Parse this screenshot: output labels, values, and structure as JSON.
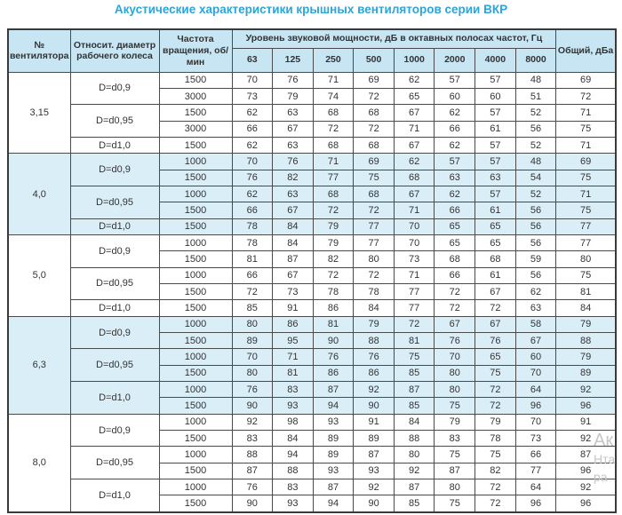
{
  "title": "Акустические характеристики крышных вентиляторов серии ВКР",
  "colors": {
    "title_text": "#29a6da",
    "header_bg": "#c8e5f3",
    "row_alt_bg": "#daeef8",
    "border": "#4a4a4a",
    "outer_border": "#3a3a3a",
    "text": "#333333",
    "watermark": "#c6c6c6"
  },
  "table": {
    "header": {
      "fan_number": "№ вентилятора",
      "diameter": "Относит. диаметр рабочего колеса",
      "speed": "Частота вращения, об/мин",
      "spl_group": "Уровень звуковой мощности, дБ в октавных полосах частот, Гц",
      "frequencies": [
        "63",
        "125",
        "250",
        "500",
        "1000",
        "2000",
        "4000",
        "8000"
      ],
      "total": "Общий, дБа"
    },
    "groups": [
      {
        "fan": "3,15",
        "shaded": false,
        "subgroups": [
          {
            "diameter": "D=d0,9",
            "rows": [
              {
                "speed": "1500",
                "values": [
                  70,
                  76,
                  71,
                  69,
                  62,
                  57,
                  57,
                  48
                ],
                "total": 69
              },
              {
                "speed": "3000",
                "values": [
                  73,
                  79,
                  74,
                  72,
                  65,
                  60,
                  60,
                  51
                ],
                "total": 72
              }
            ]
          },
          {
            "diameter": "D=d0,95",
            "rows": [
              {
                "speed": "1500",
                "values": [
                  62,
                  63,
                  68,
                  68,
                  67,
                  62,
                  57,
                  52
                ],
                "total": 71
              },
              {
                "speed": "3000",
                "values": [
                  66,
                  67,
                  72,
                  72,
                  71,
                  66,
                  61,
                  56
                ],
                "total": 75
              }
            ]
          },
          {
            "diameter": "D=d1,0",
            "rows": [
              {
                "speed": "1500",
                "values": [
                  62,
                  63,
                  68,
                  68,
                  67,
                  62,
                  57,
                  52
                ],
                "total": 71
              }
            ]
          }
        ]
      },
      {
        "fan": "4,0",
        "shaded": true,
        "subgroups": [
          {
            "diameter": "D=d0,9",
            "rows": [
              {
                "speed": "1000",
                "values": [
                  70,
                  76,
                  71,
                  69,
                  62,
                  57,
                  57,
                  48
                ],
                "total": 69
              },
              {
                "speed": "1500",
                "values": [
                  76,
                  82,
                  77,
                  75,
                  68,
                  63,
                  63,
                  54
                ],
                "total": 75
              }
            ]
          },
          {
            "diameter": "D=d0,95",
            "rows": [
              {
                "speed": "1000",
                "values": [
                  62,
                  63,
                  68,
                  68,
                  67,
                  62,
                  57,
                  52
                ],
                "total": 71
              },
              {
                "speed": "1500",
                "values": [
                  66,
                  67,
                  72,
                  72,
                  71,
                  66,
                  61,
                  56
                ],
                "total": 75
              }
            ]
          },
          {
            "diameter": "D=d1,0",
            "rows": [
              {
                "speed": "1500",
                "values": [
                  78,
                  84,
                  79,
                  77,
                  70,
                  65,
                  65,
                  56
                ],
                "total": 77
              }
            ]
          }
        ]
      },
      {
        "fan": "5,0",
        "shaded": false,
        "subgroups": [
          {
            "diameter": "D=d0,9",
            "rows": [
              {
                "speed": "1000",
                "values": [
                  78,
                  84,
                  79,
                  77,
                  70,
                  65,
                  65,
                  56
                ],
                "total": 77
              },
              {
                "speed": "1500",
                "values": [
                  81,
                  87,
                  82,
                  80,
                  73,
                  68,
                  68,
                  59
                ],
                "total": 80
              }
            ]
          },
          {
            "diameter": "D=d0,95",
            "rows": [
              {
                "speed": "1000",
                "values": [
                  66,
                  67,
                  72,
                  72,
                  71,
                  66,
                  61,
                  56
                ],
                "total": 75
              },
              {
                "speed": "1500",
                "values": [
                  72,
                  73,
                  78,
                  78,
                  77,
                  72,
                  67,
                  62
                ],
                "total": 81
              }
            ]
          },
          {
            "diameter": "D=d1,0",
            "rows": [
              {
                "speed": "1500",
                "values": [
                  85,
                  91,
                  86,
                  84,
                  77,
                  72,
                  72,
                  63
                ],
                "total": 84
              }
            ]
          }
        ]
      },
      {
        "fan": "6,3",
        "shaded": true,
        "subgroups": [
          {
            "diameter": "D=d0,9",
            "rows": [
              {
                "speed": "1000",
                "values": [
                  80,
                  86,
                  81,
                  79,
                  72,
                  67,
                  67,
                  58
                ],
                "total": 79
              },
              {
                "speed": "1500",
                "values": [
                  89,
                  95,
                  90,
                  88,
                  81,
                  76,
                  76,
                  67
                ],
                "total": 88
              }
            ]
          },
          {
            "diameter": "D=d0,95",
            "rows": [
              {
                "speed": "1000",
                "values": [
                  70,
                  71,
                  76,
                  76,
                  75,
                  70,
                  65,
                  60
                ],
                "total": 79
              },
              {
                "speed": "1500",
                "values": [
                  80,
                  81,
                  86,
                  86,
                  85,
                  80,
                  75,
                  70
                ],
                "total": 89
              }
            ]
          },
          {
            "diameter": "D=d1,0",
            "rows": [
              {
                "speed": "1000",
                "values": [
                  76,
                  83,
                  87,
                  92,
                  87,
                  80,
                  72,
                  64
                ],
                "total": 92
              },
              {
                "speed": "1500",
                "values": [
                  90,
                  93,
                  94,
                  90,
                  85,
                  75,
                  72,
                  96
                ],
                "total": 96
              }
            ]
          }
        ]
      },
      {
        "fan": "8,0",
        "shaded": false,
        "subgroups": [
          {
            "diameter": "D=d0,9",
            "rows": [
              {
                "speed": "1000",
                "values": [
                  92,
                  98,
                  93,
                  91,
                  84,
                  79,
                  79,
                  70
                ],
                "total": 91
              },
              {
                "speed": "1500",
                "values": [
                  83,
                  84,
                  89,
                  89,
                  88,
                  83,
                  78,
                  73
                ],
                "total": 92
              }
            ]
          },
          {
            "diameter": "D=d0,95",
            "rows": [
              {
                "speed": "1000",
                "values": [
                  88,
                  94,
                  89,
                  87,
                  80,
                  75,
                  75,
                  66
                ],
                "total": 87
              },
              {
                "speed": "1500",
                "values": [
                  87,
                  88,
                  93,
                  93,
                  92,
                  87,
                  82,
                  77
                ],
                "total": 96
              }
            ]
          },
          {
            "diameter": "D=d1,0",
            "rows": [
              {
                "speed": "1000",
                "values": [
                  76,
                  83,
                  87,
                  92,
                  87,
                  80,
                  72,
                  64
                ],
                "total": 92
              },
              {
                "speed": "1500",
                "values": [
                  90,
                  93,
                  94,
                  90,
                  85,
                  75,
                  72,
                  96
                ],
                "total": 96
              }
            ]
          }
        ]
      }
    ]
  },
  "watermark": {
    "lines": [
      "Ак",
      "Нта",
      "ра"
    ]
  }
}
